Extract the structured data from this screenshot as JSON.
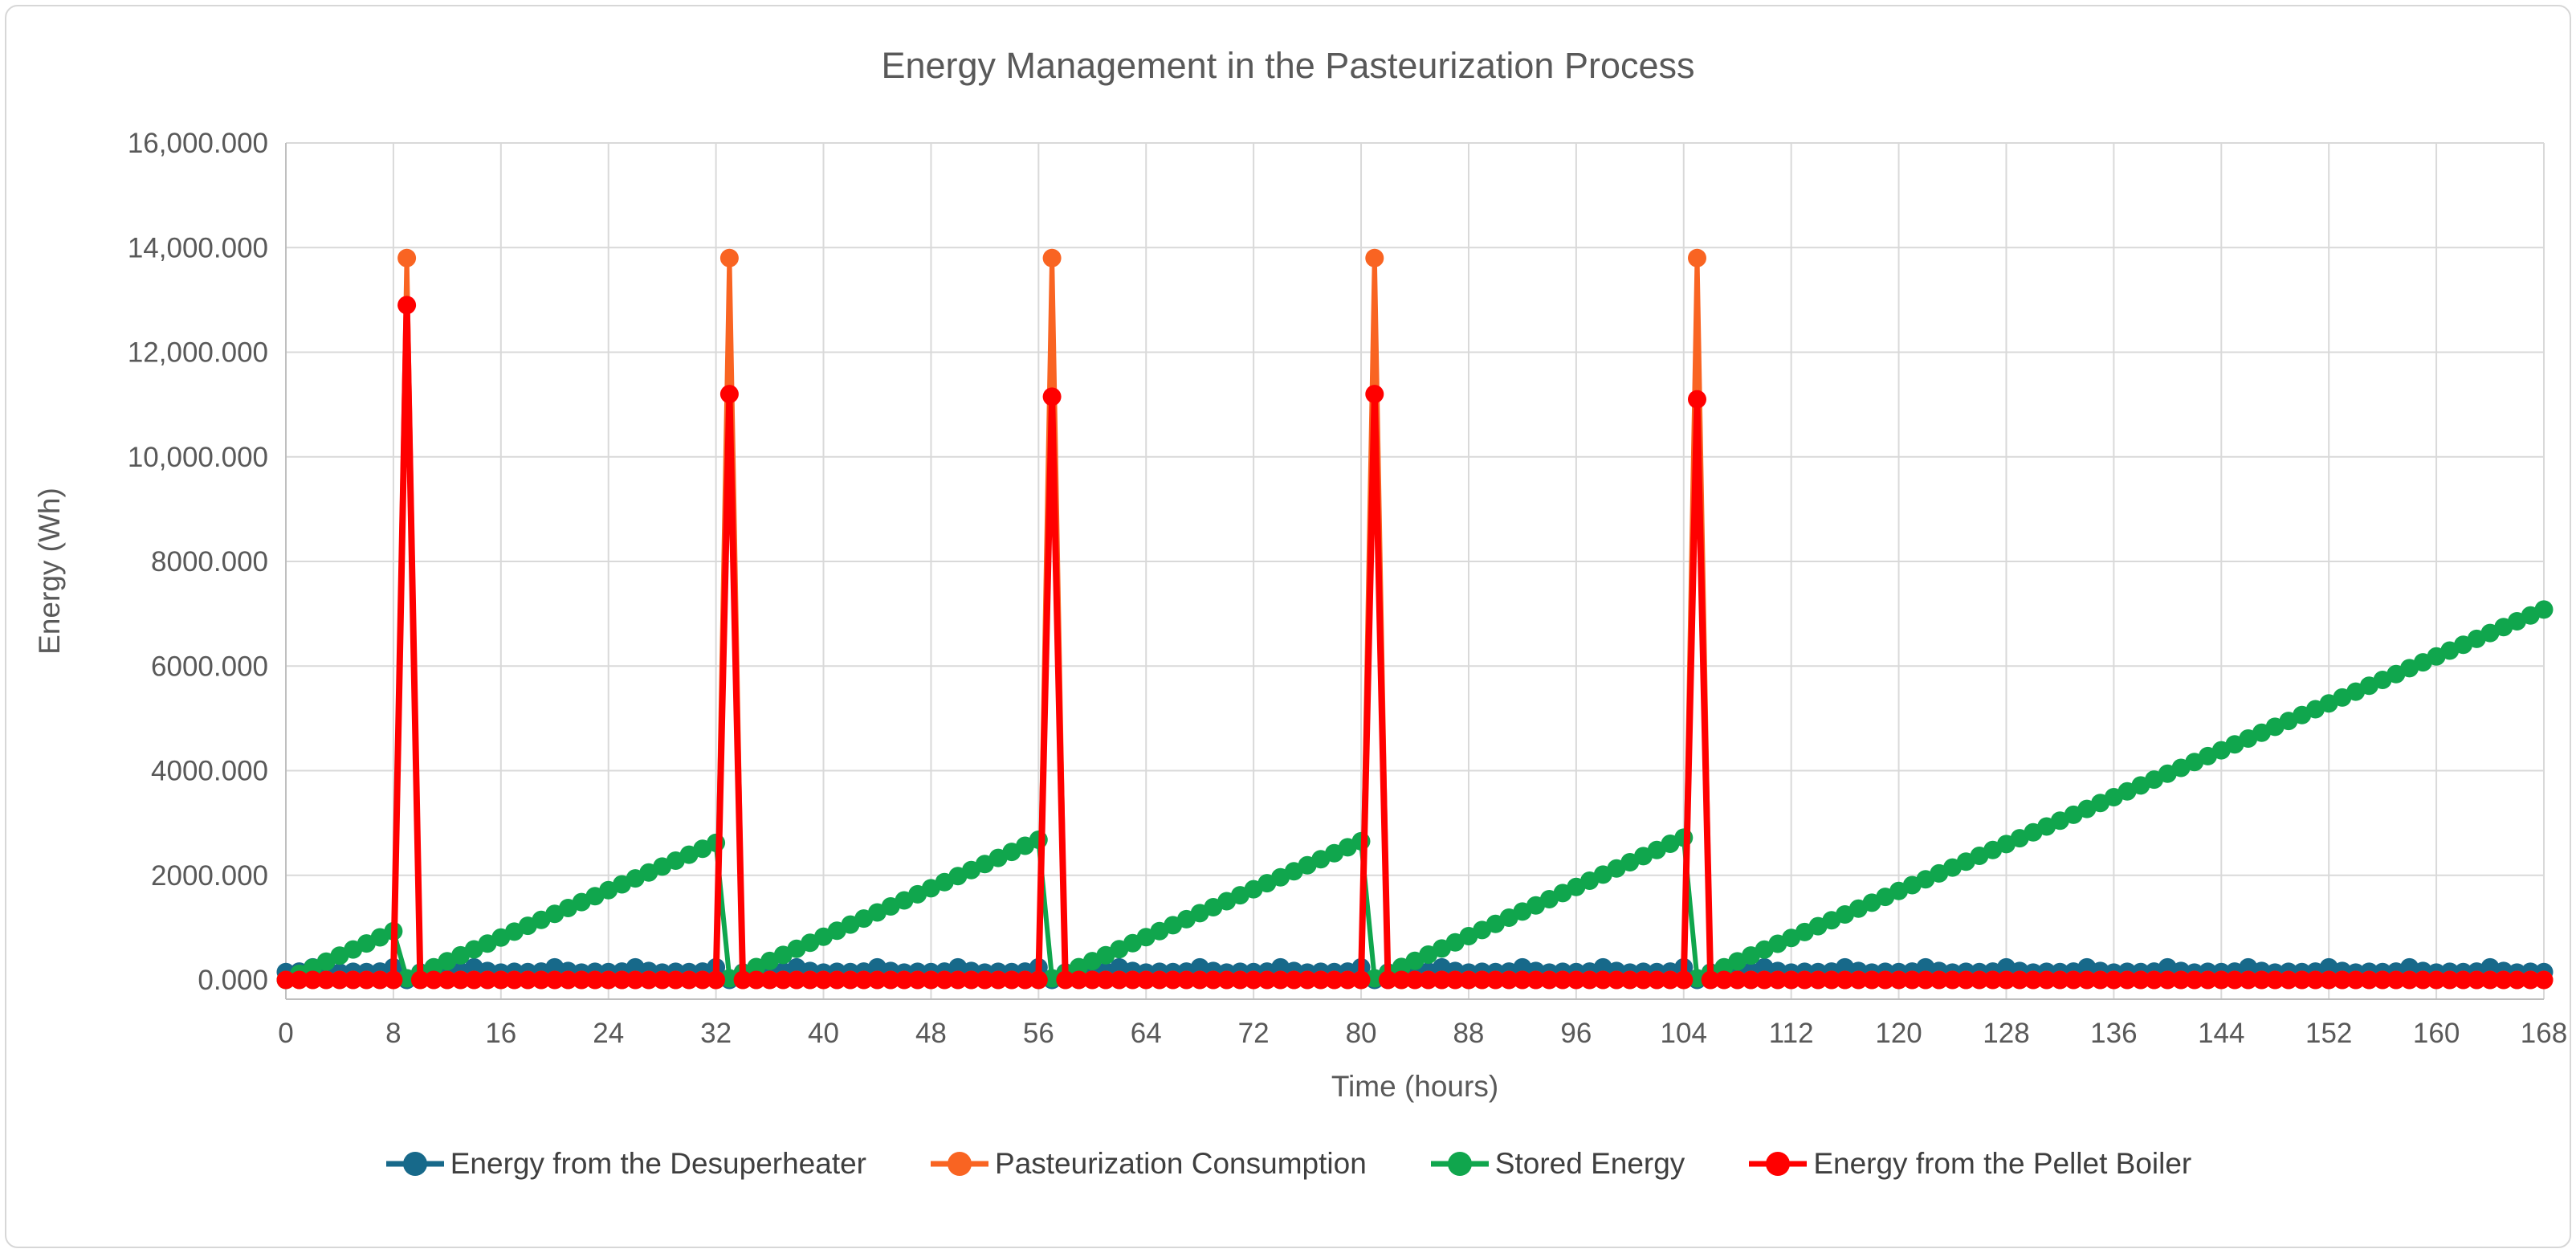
{
  "title": "Energy Management in the Pasteurization Process",
  "x_axis": {
    "label": "Time (hours)"
  },
  "y_axis": {
    "label": "Energy (Wh)"
  },
  "colors": {
    "grid": "#D9D9D9",
    "axis_line": "#BFBFBF",
    "tick_text": "#595959",
    "legend_text": "#3F3F3F",
    "title_text": "#595959",
    "desuperheater": "#17698A",
    "pasteurization": "#F96422",
    "stored": "#10A64D",
    "pellet_boiler": "#FF0000"
  },
  "chart_data": {
    "type": "line",
    "title": "Energy Management in the Pasteurization Process",
    "xlabel": "Time (hours)",
    "ylabel": "Energy (Wh)",
    "x_unit": "hours",
    "x_range": [
      0,
      168
    ],
    "x_step_hours": 1,
    "x_tick_values": [
      0,
      8,
      16,
      24,
      32,
      40,
      48,
      56,
      64,
      72,
      80,
      88,
      96,
      104,
      112,
      120,
      128,
      136,
      144,
      152,
      160,
      168
    ],
    "y_tick_values": [
      0,
      2000,
      4000,
      6000,
      8000,
      10000,
      12000,
      14000,
      16000
    ],
    "y_tick_labels": [
      "0.000",
      "2000.000",
      "4000.000",
      "6000.000",
      "8000.000",
      "10,000.000",
      "12,000.000",
      "14,000.000",
      "16,000.000"
    ],
    "ylim": [
      0,
      16000
    ],
    "grid": true,
    "legend_position": "bottom",
    "spike_hours": [
      9,
      33,
      57,
      81,
      105
    ],
    "series": [
      {
        "name": "Energy from the Desuperheater",
        "color": "#17698A",
        "marker": "circle",
        "shape": {
          "type": "pattern",
          "period_values": [
            150,
            160,
            240,
            170,
            140,
            155
          ],
          "zero_hours": [
            9,
            33,
            57,
            81,
            105
          ]
        }
      },
      {
        "name": "Pasteurization Consumption",
        "color": "#F96422",
        "marker": "circle",
        "shape": {
          "type": "spikes",
          "baseline": 0,
          "hours": [
            9,
            33,
            57,
            81,
            105
          ],
          "values": [
            13800,
            13800,
            13800,
            13800,
            13800
          ]
        }
      },
      {
        "name": "Stored Energy",
        "color": "#10A64D",
        "marker": "circle",
        "shape": {
          "type": "piecewise_linear",
          "points": [
            [
              0,
              0
            ],
            [
              8,
              930
            ],
            [
              9,
              30
            ],
            [
              10,
              130
            ],
            [
              32,
              2620
            ],
            [
              33,
              30
            ],
            [
              34,
              130
            ],
            [
              56,
              2680
            ],
            [
              57,
              30
            ],
            [
              58,
              130
            ],
            [
              80,
              2650
            ],
            [
              81,
              30
            ],
            [
              82,
              130
            ],
            [
              104,
              2720
            ],
            [
              105,
              30
            ],
            [
              106,
              130
            ],
            [
              168,
              7080
            ]
          ]
        }
      },
      {
        "name": "Energy from the Pellet Boiler",
        "color": "#FF0000",
        "marker": "circle",
        "shape": {
          "type": "spikes",
          "baseline": 0,
          "hours": [
            9,
            33,
            57,
            81,
            105
          ],
          "values": [
            12900,
            11200,
            11150,
            11200,
            11100
          ]
        }
      }
    ]
  }
}
